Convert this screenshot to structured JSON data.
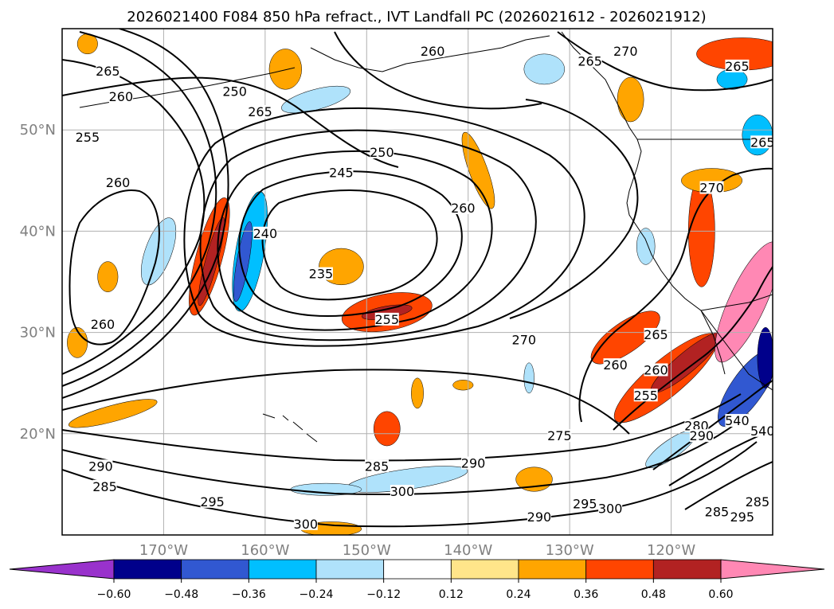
{
  "title": "2026021400 F084 850 hPa refract., IVT Landfall PC (2026021612 - 2026021912)",
  "map": {
    "projection": "lat-lon",
    "extent": {
      "lon_min": -180,
      "lon_max": -110,
      "lat_min": 10,
      "lat_max": 60
    },
    "lat_gridlines": [
      20,
      30,
      40,
      50
    ],
    "lon_gridlines": [
      -170,
      -160,
      -150,
      -140,
      -130,
      -120
    ],
    "lat_labels": [
      "20°N",
      "30°N",
      "40°N",
      "50°N"
    ],
    "lon_labels": [
      "170°W",
      "160°W",
      "150°W",
      "140°W",
      "130°W",
      "120°W"
    ],
    "contour_field": "850 hPa refractivity",
    "fill_field": "IVT Landfall PC",
    "contour_labels": [
      {
        "text": "265",
        "lon": -175.5,
        "lat": 55.5
      },
      {
        "text": "260",
        "lon": -174.2,
        "lat": 53.0
      },
      {
        "text": "255",
        "lon": -177.5,
        "lat": 49.0
      },
      {
        "text": "250",
        "lon": -163.0,
        "lat": 53.5
      },
      {
        "text": "265",
        "lon": -160.5,
        "lat": 51.5
      },
      {
        "text": "260",
        "lon": -174.5,
        "lat": 44.5
      },
      {
        "text": "245",
        "lon": -152.5,
        "lat": 45.5
      },
      {
        "text": "250",
        "lon": -148.5,
        "lat": 47.5
      },
      {
        "text": "240",
        "lon": -160.0,
        "lat": 39.5
      },
      {
        "text": "235",
        "lon": -154.5,
        "lat": 35.5
      },
      {
        "text": "255",
        "lon": -148.0,
        "lat": 31.0
      },
      {
        "text": "260",
        "lon": -176.0,
        "lat": 30.5
      },
      {
        "text": "260",
        "lon": -143.5,
        "lat": 57.5
      },
      {
        "text": "260",
        "lon": -140.5,
        "lat": 42.0
      },
      {
        "text": "265",
        "lon": -128.0,
        "lat": 56.5
      },
      {
        "text": "270",
        "lon": -124.5,
        "lat": 57.5
      },
      {
        "text": "265",
        "lon": -113.5,
        "lat": 56.0
      },
      {
        "text": "265",
        "lon": -111.0,
        "lat": 48.5
      },
      {
        "text": "270",
        "lon": -116.0,
        "lat": 44.0
      },
      {
        "text": "270",
        "lon": -134.5,
        "lat": 29.0
      },
      {
        "text": "265",
        "lon": -121.5,
        "lat": 29.5
      },
      {
        "text": "260",
        "lon": -125.5,
        "lat": 26.5
      },
      {
        "text": "260",
        "lon": -121.5,
        "lat": 26.0
      },
      {
        "text": "255",
        "lon": -122.5,
        "lat": 23.5
      },
      {
        "text": "275",
        "lon": -131.0,
        "lat": 19.5
      },
      {
        "text": "280",
        "lon": -117.5,
        "lat": 20.5
      },
      {
        "text": "290",
        "lon": -117.0,
        "lat": 19.5
      },
      {
        "text": "540",
        "lon": -113.5,
        "lat": 21.0
      },
      {
        "text": "540",
        "lon": -111.0,
        "lat": 20.0
      },
      {
        "text": "290",
        "lon": -176.2,
        "lat": 16.5
      },
      {
        "text": "285",
        "lon": -175.8,
        "lat": 14.5
      },
      {
        "text": "295",
        "lon": -165.2,
        "lat": 13.0
      },
      {
        "text": "285",
        "lon": -149.0,
        "lat": 16.5
      },
      {
        "text": "290",
        "lon": -139.5,
        "lat": 16.8
      },
      {
        "text": "300",
        "lon": -146.5,
        "lat": 14.0
      },
      {
        "text": "300",
        "lon": -156.0,
        "lat": 10.8
      },
      {
        "text": "290",
        "lon": -133.0,
        "lat": 11.5
      },
      {
        "text": "295",
        "lon": -128.5,
        "lat": 12.8
      },
      {
        "text": "300",
        "lon": -126.0,
        "lat": 12.3
      },
      {
        "text": "285",
        "lon": -115.5,
        "lat": 12.0
      },
      {
        "text": "295",
        "lon": -113.0,
        "lat": 11.5
      },
      {
        "text": "285",
        "lon": -111.5,
        "lat": 13.0
      }
    ]
  },
  "colorbar": {
    "ticks": [
      "−0.60",
      "−0.48",
      "−0.36",
      "−0.24",
      "−0.12",
      "0.12",
      "0.24",
      "0.36",
      "0.48",
      "0.60"
    ],
    "levels": [
      -0.6,
      -0.48,
      -0.36,
      -0.24,
      -0.12,
      0.12,
      0.24,
      0.36,
      0.48,
      0.6
    ],
    "colors": [
      "#9932cc",
      "#00008b",
      "#3158d1",
      "#00bfff",
      "#afe2fb",
      "#ffffff",
      "#ffe58a",
      "#ffa500",
      "#ff4500",
      "#b22222",
      "#ff88b4"
    ],
    "extend": "both"
  },
  "ivt_anomalies": [
    {
      "lon": -165.5,
      "lat": 37.5,
      "value": 0.36,
      "rx": 1.3,
      "ry": 6.0,
      "rot": 15
    },
    {
      "lon": -165.3,
      "lat": 37.0,
      "value": 0.48,
      "rx": 0.6,
      "ry": 4.5,
      "rot": 15
    },
    {
      "lon": -161.5,
      "lat": 38.0,
      "value": -0.36,
      "rx": 1.4,
      "ry": 6.0,
      "rot": 10
    },
    {
      "lon": -162.2,
      "lat": 37.0,
      "value": -0.48,
      "rx": 0.6,
      "ry": 4.0,
      "rot": 10
    },
    {
      "lon": -170.5,
      "lat": 38.0,
      "value": -0.24,
      "rx": 1.3,
      "ry": 3.5,
      "rot": 20
    },
    {
      "lon": -148.0,
      "lat": 32.0,
      "value": 0.36,
      "rx": 4.5,
      "ry": 1.8,
      "rot": -10
    },
    {
      "lon": -148.0,
      "lat": 32.0,
      "value": 0.48,
      "rx": 2.5,
      "ry": 0.6,
      "rot": -10
    },
    {
      "lon": -152.5,
      "lat": 36.5,
      "value": 0.24,
      "rx": 2.2,
      "ry": 1.8,
      "rot": 0
    },
    {
      "lon": -139.0,
      "lat": 46.0,
      "value": 0.24,
      "rx": 0.9,
      "ry": 4.0,
      "rot": -20
    },
    {
      "lon": -117.0,
      "lat": 40.0,
      "value": 0.36,
      "rx": 1.3,
      "ry": 5.5,
      "rot": 0
    },
    {
      "lon": -116.0,
      "lat": 45.0,
      "value": 0.24,
      "rx": 3.0,
      "ry": 1.2,
      "rot": 0
    },
    {
      "lon": -124.5,
      "lat": 29.5,
      "value": 0.36,
      "rx": 4.0,
      "ry": 1.5,
      "rot": -35
    },
    {
      "lon": -120.5,
      "lat": 25.5,
      "value": 0.36,
      "rx": 6.5,
      "ry": 1.8,
      "rot": -40
    },
    {
      "lon": -118.5,
      "lat": 27.0,
      "value": 0.48,
      "rx": 4.5,
      "ry": 1.0,
      "rot": -40
    },
    {
      "lon": -112.5,
      "lat": 33.0,
      "value": 0.6,
      "rx": 1.8,
      "ry": 6.5,
      "rot": 25
    },
    {
      "lon": -112.5,
      "lat": 24.5,
      "value": -0.48,
      "rx": 1.6,
      "ry": 4.5,
      "rot": 35
    },
    {
      "lon": -110.7,
      "lat": 27.5,
      "value": -0.6,
      "rx": 0.8,
      "ry": 3.0,
      "rot": 0
    },
    {
      "lon": -111.5,
      "lat": 49.5,
      "value": -0.36,
      "rx": 1.5,
      "ry": 2.0,
      "rot": 0
    },
    {
      "lon": -113.0,
      "lat": 57.5,
      "value": 0.36,
      "rx": 4.5,
      "ry": 1.6,
      "rot": 0
    },
    {
      "lon": -146.0,
      "lat": 15.5,
      "value": -0.24,
      "rx": 6.0,
      "ry": 1.0,
      "rot": -8
    },
    {
      "lon": -154.0,
      "lat": 14.5,
      "value": -0.24,
      "rx": 3.5,
      "ry": 0.6,
      "rot": 0
    },
    {
      "lon": -120.0,
      "lat": 18.5,
      "value": -0.24,
      "rx": 3.0,
      "ry": 0.9,
      "rot": -35
    },
    {
      "lon": -158.0,
      "lat": 56.0,
      "value": 0.24,
      "rx": 1.6,
      "ry": 2.0,
      "rot": 0
    },
    {
      "lon": -155.0,
      "lat": 53.0,
      "value": -0.24,
      "rx": 3.5,
      "ry": 1.0,
      "rot": -15
    },
    {
      "lon": -175.0,
      "lat": 22.0,
      "value": 0.24,
      "rx": 4.5,
      "ry": 0.8,
      "rot": -15
    },
    {
      "lon": -148.0,
      "lat": 20.5,
      "value": 0.36,
      "rx": 1.3,
      "ry": 1.7,
      "rot": 0
    },
    {
      "lon": -133.5,
      "lat": 15.5,
      "value": 0.24,
      "rx": 1.8,
      "ry": 1.2,
      "rot": 0
    },
    {
      "lon": -124.0,
      "lat": 53.0,
      "value": 0.24,
      "rx": 1.3,
      "ry": 2.2,
      "rot": 0
    },
    {
      "lon": -153.5,
      "lat": 10.6,
      "value": 0.24,
      "rx": 3.0,
      "ry": 0.7,
      "rot": 0
    },
    {
      "lon": -178.5,
      "lat": 29.0,
      "value": 0.24,
      "rx": 1.0,
      "ry": 1.5,
      "rot": 0
    },
    {
      "lon": -175.5,
      "lat": 35.5,
      "value": 0.24,
      "rx": 1.0,
      "ry": 1.5,
      "rot": 0
    },
    {
      "lon": -177.5,
      "lat": 58.5,
      "value": 0.24,
      "rx": 1.0,
      "ry": 1.0,
      "rot": 0
    },
    {
      "lon": -134.0,
      "lat": 25.5,
      "value": -0.24,
      "rx": 0.5,
      "ry": 1.5,
      "rot": 0
    },
    {
      "lon": -122.5,
      "lat": 38.5,
      "value": -0.24,
      "rx": 0.9,
      "ry": 1.8,
      "rot": 0
    },
    {
      "lon": -132.5,
      "lat": 56.0,
      "value": -0.24,
      "rx": 2.0,
      "ry": 1.5,
      "rot": 0
    },
    {
      "lon": -140.5,
      "lat": 24.8,
      "value": 0.24,
      "rx": 1.0,
      "ry": 0.5,
      "rot": 0
    },
    {
      "lon": -145.0,
      "lat": 24.0,
      "value": 0.24,
      "rx": 0.6,
      "ry": 1.5,
      "rot": 0
    },
    {
      "lon": -114.0,
      "lat": 55.0,
      "value": -0.36,
      "rx": 1.5,
      "ry": 1.0,
      "rot": 0
    }
  ]
}
